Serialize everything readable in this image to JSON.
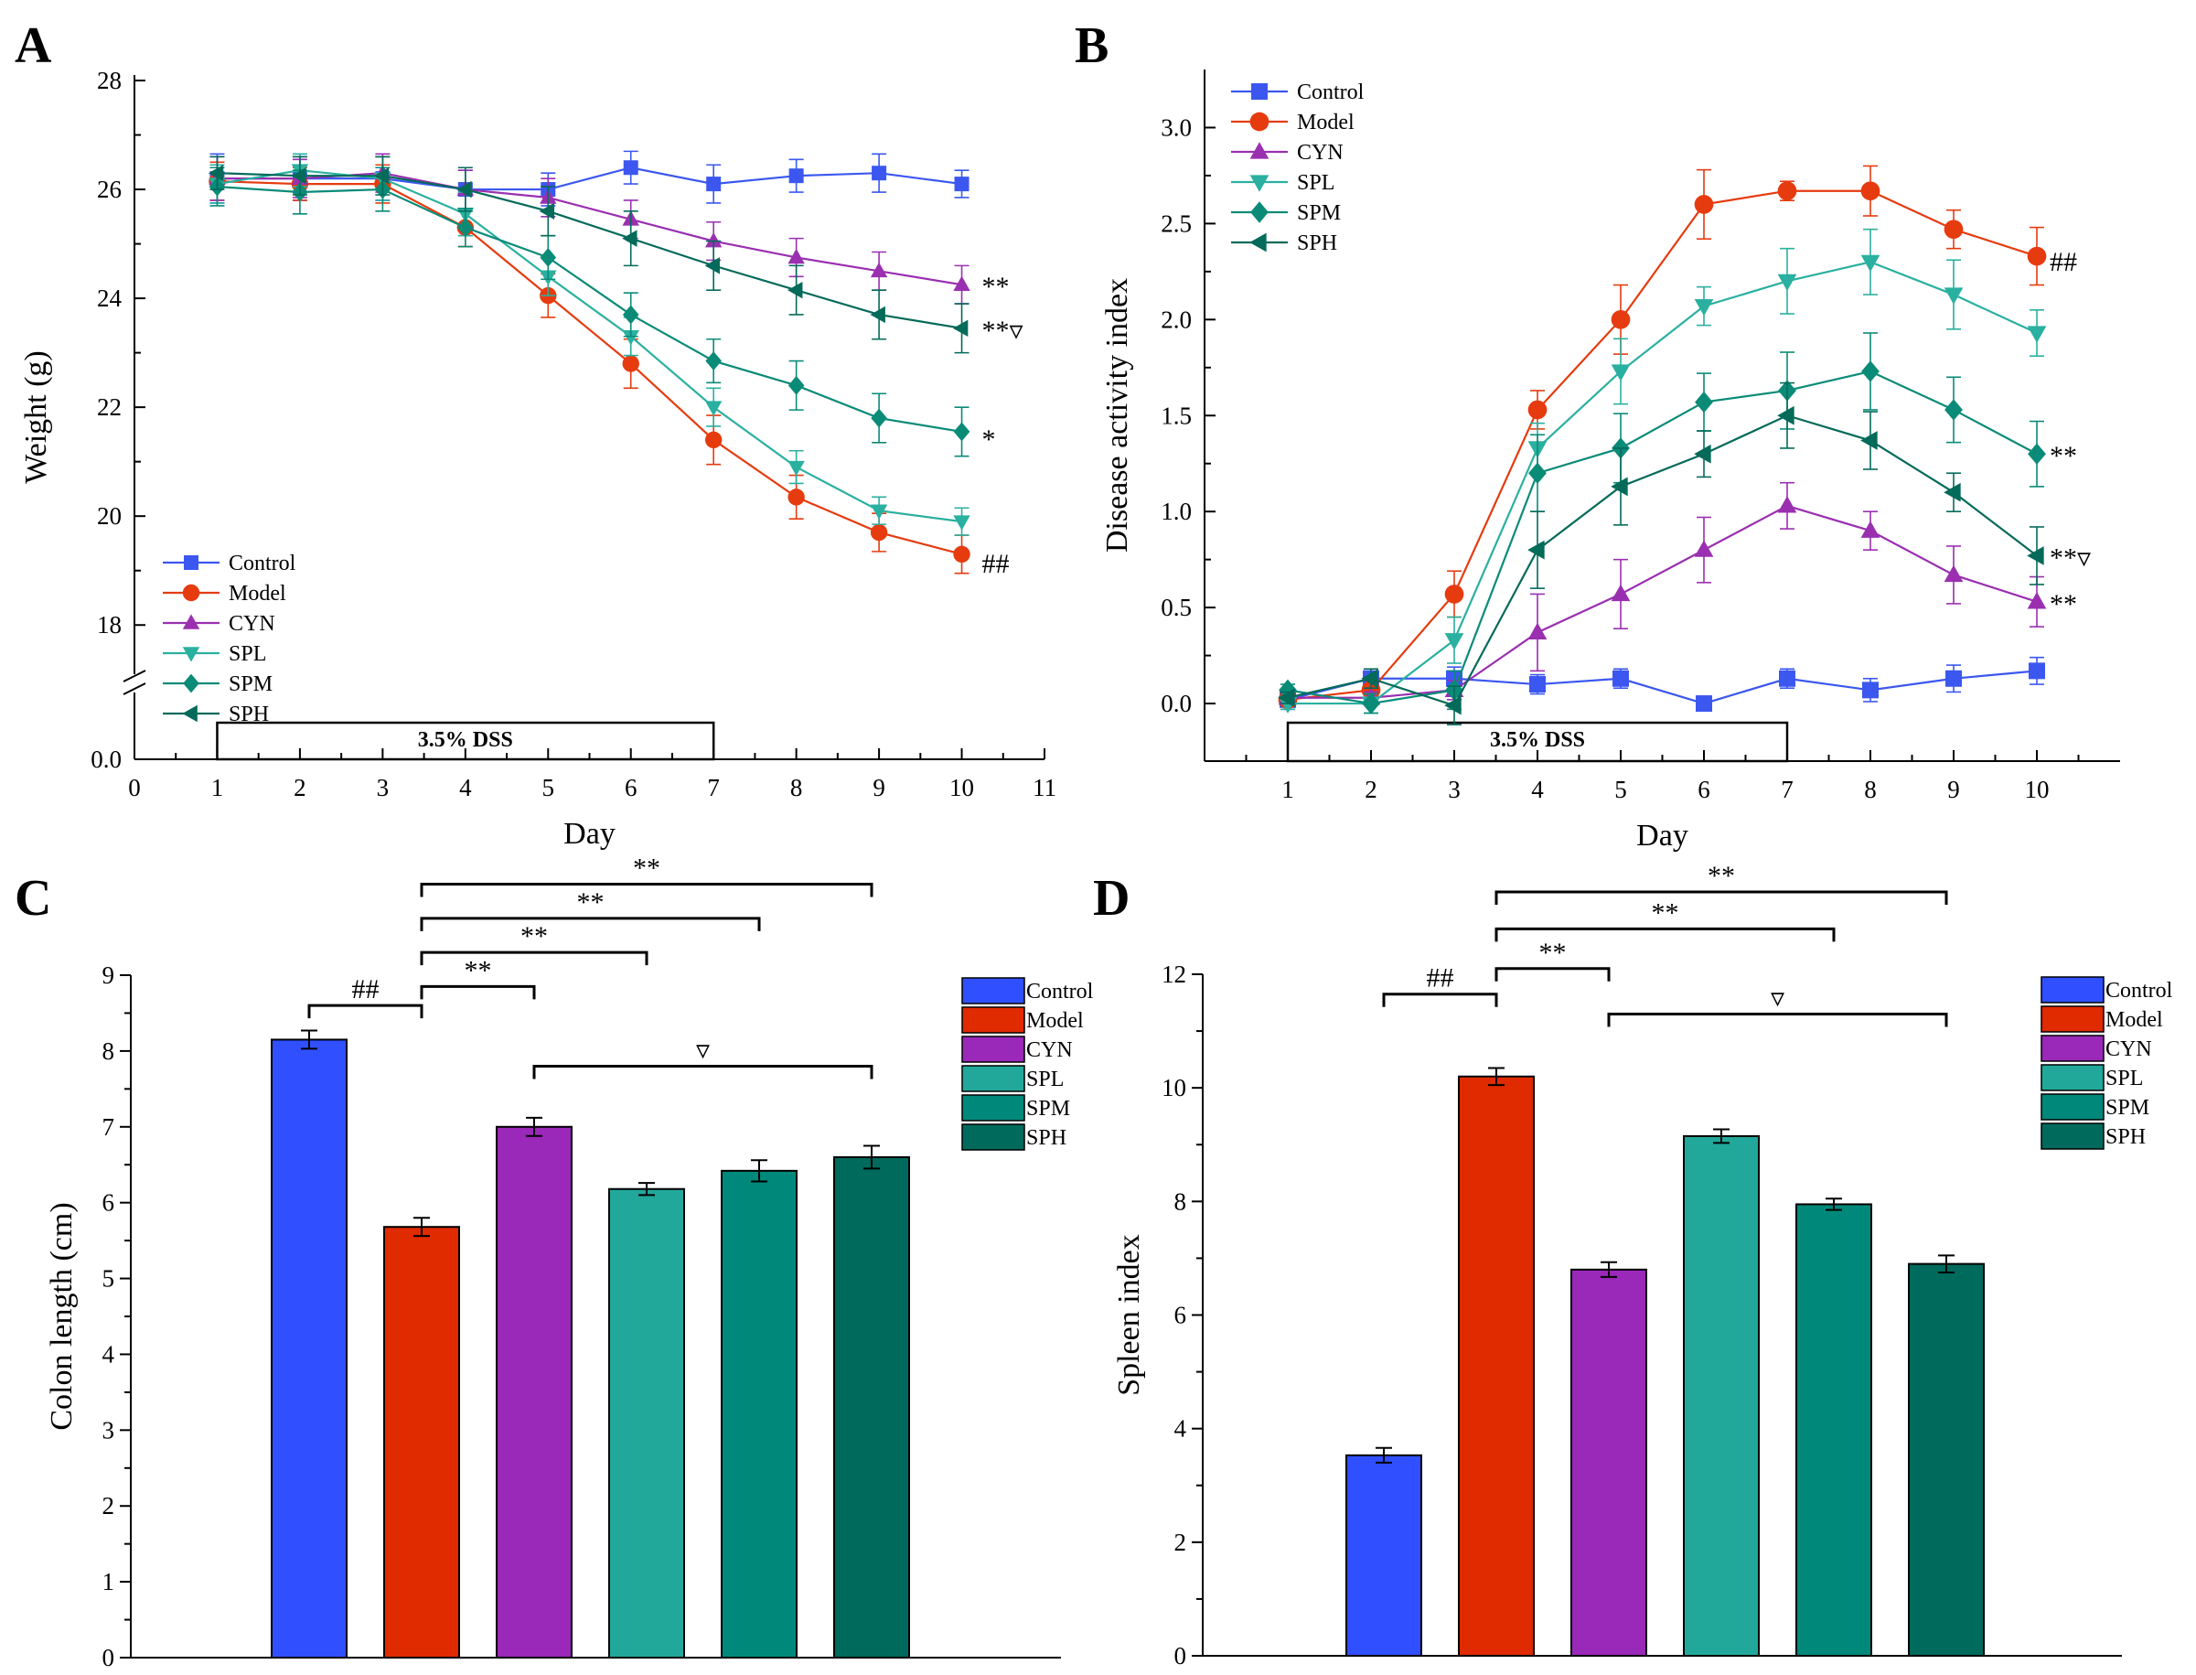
{
  "chart_data": [
    {
      "panel": "A",
      "type": "line",
      "xlabel": "Day",
      "ylabel": "Weight (g)",
      "xlim": [
        0,
        11
      ],
      "x_ticks": [
        0,
        1,
        2,
        3,
        4,
        5,
        6,
        7,
        8,
        9,
        10,
        11
      ],
      "ylim": [
        17.5,
        28
      ],
      "y_ticks": [
        "18",
        "20",
        "22",
        "24",
        "26",
        "28"
      ],
      "y_break_label": "0.0",
      "legend_position": "bottom-left",
      "bar_annotation": {
        "label": "3.5% DSS",
        "from_day": 1,
        "to_day": 7
      },
      "x": [
        1,
        2,
        3,
        4,
        5,
        6,
        7,
        8,
        9,
        10
      ],
      "series": [
        {
          "name": "Control",
          "color": "#3b57f0",
          "marker": "square",
          "values": [
            26.2,
            26.2,
            26.2,
            26.0,
            26.0,
            26.4,
            26.1,
            26.25,
            26.3,
            26.1
          ],
          "errors": [
            0.45,
            0.4,
            0.4,
            0.35,
            0.3,
            0.3,
            0.35,
            0.3,
            0.35,
            0.25
          ]
        },
        {
          "name": "Model",
          "color": "#e63b0f",
          "marker": "circle",
          "values": [
            26.15,
            26.1,
            26.1,
            25.3,
            24.05,
            22.8,
            21.4,
            20.35,
            19.7,
            19.3
          ],
          "errors": [
            0.35,
            0.3,
            0.35,
            0.35,
            0.4,
            0.45,
            0.45,
            0.4,
            0.35,
            0.35
          ]
        },
        {
          "name": "CYN",
          "color": "#9a2fb0",
          "marker": "triangle-up",
          "values": [
            26.2,
            26.2,
            26.3,
            26.0,
            25.85,
            25.45,
            25.05,
            24.75,
            24.5,
            24.25
          ],
          "errors": [
            0.4,
            0.35,
            0.35,
            0.35,
            0.35,
            0.35,
            0.35,
            0.35,
            0.35,
            0.35
          ]
        },
        {
          "name": "SPL",
          "color": "#2ab0a0",
          "marker": "triangle-down",
          "values": [
            26.1,
            26.35,
            26.2,
            25.55,
            24.4,
            23.3,
            22.0,
            20.9,
            20.1,
            19.9
          ],
          "errors": [
            0.35,
            0.3,
            0.4,
            0.4,
            0.35,
            0.35,
            0.35,
            0.3,
            0.25,
            0.25
          ]
        },
        {
          "name": "SPM",
          "color": "#0a8b78",
          "marker": "diamond",
          "values": [
            26.05,
            25.95,
            26.0,
            25.3,
            24.75,
            23.7,
            22.85,
            22.4,
            21.8,
            21.55
          ],
          "errors": [
            0.35,
            0.4,
            0.4,
            0.35,
            0.4,
            0.4,
            0.4,
            0.45,
            0.45,
            0.45
          ]
        },
        {
          "name": "SPH",
          "color": "#046a5a",
          "marker": "triangle-left",
          "values": [
            26.3,
            26.25,
            26.25,
            26.0,
            25.6,
            25.1,
            24.6,
            24.15,
            23.7,
            23.45
          ],
          "errors": [
            0.3,
            0.35,
            0.35,
            0.4,
            0.45,
            0.5,
            0.45,
            0.45,
            0.45,
            0.45
          ]
        }
      ],
      "annotations": [
        {
          "series": "CYN",
          "text": "**"
        },
        {
          "series": "SPH",
          "text": "**▿"
        },
        {
          "series": "SPM",
          "text": "*"
        },
        {
          "series": "Model",
          "text": "##"
        }
      ]
    },
    {
      "panel": "B",
      "type": "line",
      "xlabel": "Day",
      "ylabel": "Disease activity index",
      "xlim": [
        0,
        11
      ],
      "x_ticks": [
        1,
        2,
        3,
        4,
        5,
        6,
        7,
        8,
        9,
        10
      ],
      "ylim": [
        -0.3,
        3.25
      ],
      "y_ticks": [
        "0.0",
        "0.5",
        "1.0",
        "1.5",
        "2.0",
        "2.5",
        "3.0"
      ],
      "legend_position": "top-left",
      "bar_annotation": {
        "label": "3.5% DSS",
        "from_day": 1,
        "to_day": 7
      },
      "x": [
        1,
        2,
        3,
        4,
        5,
        6,
        7,
        8,
        9,
        10
      ],
      "series": [
        {
          "name": "Control",
          "color": "#3b57f0",
          "marker": "square",
          "values": [
            0.02,
            0.13,
            0.13,
            0.1,
            0.13,
            0.0,
            0.13,
            0.07,
            0.13,
            0.17
          ],
          "errors": [
            0.05,
            0.05,
            0.06,
            0.05,
            0.05,
            0.0,
            0.05,
            0.06,
            0.07,
            0.07
          ]
        },
        {
          "name": "Model",
          "color": "#e63b0f",
          "marker": "circle",
          "values": [
            0.02,
            0.07,
            0.57,
            1.53,
            2.0,
            2.6,
            2.67,
            2.67,
            2.47,
            2.33
          ],
          "errors": [
            0.03,
            0.05,
            0.12,
            0.1,
            0.18,
            0.18,
            0.05,
            0.13,
            0.1,
            0.15
          ]
        },
        {
          "name": "CYN",
          "color": "#9a2fb0",
          "marker": "triangle-up",
          "values": [
            0.03,
            0.03,
            0.07,
            0.37,
            0.57,
            0.8,
            1.03,
            0.9,
            0.67,
            0.53
          ],
          "errors": [
            0.03,
            0.03,
            0.05,
            0.2,
            0.18,
            0.17,
            0.12,
            0.1,
            0.15,
            0.13
          ]
        },
        {
          "name": "SPL",
          "color": "#2ab0a0",
          "marker": "triangle-down",
          "values": [
            0.0,
            0.0,
            0.33,
            1.33,
            1.73,
            2.07,
            2.2,
            2.3,
            2.13,
            1.93
          ],
          "errors": [
            0.03,
            0.05,
            0.12,
            0.13,
            0.17,
            0.1,
            0.17,
            0.17,
            0.18,
            0.12
          ]
        },
        {
          "name": "SPM",
          "color": "#0a8b78",
          "marker": "diamond",
          "values": [
            0.07,
            0.0,
            0.07,
            1.2,
            1.33,
            1.57,
            1.63,
            1.73,
            1.53,
            1.3
          ],
          "errors": [
            0.03,
            0.05,
            0.1,
            0.2,
            0.18,
            0.15,
            0.2,
            0.2,
            0.17,
            0.17
          ]
        },
        {
          "name": "SPH",
          "color": "#046a5a",
          "marker": "triangle-left",
          "values": [
            0.03,
            0.13,
            -0.01,
            0.8,
            1.13,
            1.3,
            1.5,
            1.37,
            1.1,
            0.77
          ],
          "errors": [
            0.03,
            0.05,
            0.1,
            0.2,
            0.2,
            0.12,
            0.17,
            0.15,
            0.1,
            0.15
          ]
        }
      ],
      "annotations": [
        {
          "series": "Model",
          "text": "##"
        },
        {
          "series": "SPM",
          "text": "**"
        },
        {
          "series": "SPH",
          "text": "**▿"
        },
        {
          "series": "CYN",
          "text": "**"
        }
      ]
    },
    {
      "panel": "C",
      "type": "bar",
      "xlabel": "",
      "ylabel": "Colon length (cm)",
      "ylim": [
        0,
        9
      ],
      "y_ticks": [
        "0",
        "1",
        "2",
        "3",
        "4",
        "5",
        "6",
        "7",
        "8",
        "9"
      ],
      "legend_position": "top-right",
      "categories": [
        "Control",
        "Model",
        "CYN",
        "SPL",
        "SPM",
        "SPH"
      ],
      "colors": [
        "#3050ff",
        "#e02a00",
        "#9a28b8",
        "#22a89a",
        "#00897a",
        "#006a5c"
      ],
      "values": [
        8.15,
        5.68,
        7.0,
        6.18,
        6.42,
        6.6
      ],
      "errors": [
        0.12,
        0.12,
        0.12,
        0.08,
        0.14,
        0.15
      ],
      "brackets": [
        {
          "from": "Control",
          "to": "Model",
          "text": "##",
          "value": 8.6
        },
        {
          "from": "Model",
          "to": "CYN",
          "text": "**",
          "value": 8.85
        },
        {
          "from": "Model",
          "to": "SPL",
          "text": "**",
          "value": 9.3
        },
        {
          "from": "Model",
          "to": "SPM",
          "text": "**",
          "value": 9.75
        },
        {
          "from": "Model",
          "to": "SPH",
          "text": "**",
          "value": 10.2
        },
        {
          "from": "CYN",
          "to": "SPH",
          "text": "▿",
          "value": 7.8
        }
      ]
    },
    {
      "panel": "D",
      "type": "bar",
      "xlabel": "",
      "ylabel": "Spleen index",
      "ylim": [
        0,
        12
      ],
      "y_ticks": [
        "0",
        "2",
        "4",
        "6",
        "8",
        "10",
        "12"
      ],
      "legend_position": "top-right",
      "categories": [
        "Control",
        "Model",
        "CYN",
        "SPL",
        "SPM",
        "SPH"
      ],
      "colors": [
        "#3050ff",
        "#e02a00",
        "#9a28b8",
        "#22a89a",
        "#00897a",
        "#006a5c"
      ],
      "values": [
        3.53,
        10.2,
        6.8,
        9.15,
        7.95,
        6.9
      ],
      "errors": [
        0.13,
        0.15,
        0.13,
        0.12,
        0.1,
        0.15
      ],
      "brackets": [
        {
          "from": "Control",
          "to": "Model",
          "text": "##",
          "value": 11.65
        },
        {
          "from": "Model",
          "to": "CYN",
          "text": "**",
          "value": 12.1
        },
        {
          "from": "Model",
          "to": "SPM",
          "text": "**",
          "value": 12.8
        },
        {
          "from": "Model",
          "to": "SPH",
          "text": "**",
          "value": 13.45
        },
        {
          "from": "CYN",
          "to": "SPH",
          "text": "▿",
          "value": 11.3
        }
      ]
    }
  ]
}
